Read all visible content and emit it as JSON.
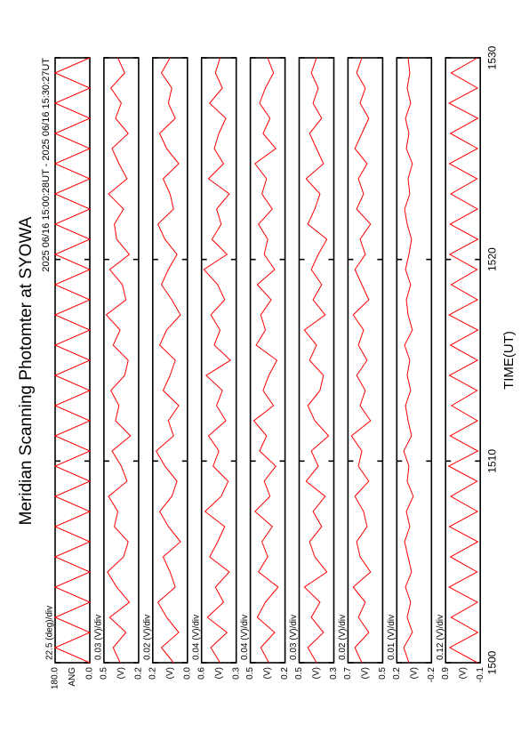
{
  "title": "Meridian Scanning Photomter at SYOWA",
  "subtitle": "2025 06/16 15:00:28UT - 2025 06/16 15:30:27UT",
  "chart_data": {
    "type": "line",
    "xlabel": "TIME(UT)",
    "color": "#ff0000",
    "xlim": [
      1500,
      1530
    ],
    "xticks": [
      1500,
      1510,
      1520,
      1530
    ],
    "x": [
      1500,
      1500.75,
      1501.5,
      1502.25,
      1503,
      1503.75,
      1504.5,
      1505.25,
      1506,
      1506.75,
      1507.5,
      1508.25,
      1509,
      1509.75,
      1510.5,
      1511.25,
      1512,
      1512.75,
      1513.5,
      1514.25,
      1515,
      1515.75,
      1516.5,
      1517.25,
      1518,
      1518.75,
      1519.5,
      1520.25,
      1521,
      1521.75,
      1522.5,
      1523.25,
      1524,
      1524.75,
      1525.5,
      1526.25,
      1527,
      1527.75,
      1528.5,
      1529.25,
      1530
    ],
    "panels": [
      {
        "scale": "22.5 (deg)/div",
        "ylabel": "ANG",
        "ylim": [
          0,
          180
        ],
        "yticks": [
          {
            "value": 0,
            "label": "0.0"
          },
          {
            "value": 180,
            "label": "180.0"
          }
        ],
        "values": [
          0,
          180,
          0,
          180,
          0,
          180,
          0,
          180,
          0,
          180,
          0,
          180,
          0,
          180,
          0,
          180,
          0,
          180,
          0,
          180,
          0,
          180,
          0,
          180,
          0,
          180,
          0,
          180,
          0,
          180,
          0,
          180,
          0,
          180,
          0,
          180,
          0,
          180,
          0,
          180,
          0
        ]
      },
      {
        "scale": "0.03 (V)/div",
        "ylabel": "(V)",
        "ylim": [
          0.2,
          0.5
        ],
        "yticks": [
          0.2,
          0.5
        ],
        "values": [
          0.36,
          0.42,
          0.31,
          0.45,
          0.28,
          0.39,
          0.47,
          0.33,
          0.29,
          0.41,
          0.38,
          0.46,
          0.3,
          0.35,
          0.43,
          0.27,
          0.4,
          0.37,
          0.44,
          0.32,
          0.29,
          0.42,
          0.36,
          0.48,
          0.31,
          0.34,
          0.45,
          0.28,
          0.39,
          0.41,
          0.33,
          0.46,
          0.3,
          0.37,
          0.43,
          0.29,
          0.4,
          0.35,
          0.44,
          0.32,
          0.38
        ]
      },
      {
        "scale": "0.02 (V)/div",
        "ylabel": "(V)",
        "ylim": [
          0,
          0.2
        ],
        "yticks": [
          {
            "value": 0,
            "label": "0.0"
          },
          0.2
        ],
        "values": [
          0.08,
          0.15,
          0.05,
          0.12,
          0.17,
          0.07,
          0.1,
          0.14,
          0.04,
          0.11,
          0.16,
          0.09,
          0.06,
          0.13,
          0.18,
          0.08,
          0.11,
          0.05,
          0.14,
          0.1,
          0.07,
          0.16,
          0.12,
          0.04,
          0.09,
          0.15,
          0.11,
          0.06,
          0.13,
          0.17,
          0.08,
          0.1,
          0.14,
          0.05,
          0.12,
          0.16,
          0.07,
          0.11,
          0.09,
          0.15,
          0.1
        ]
      },
      {
        "scale": "0.04 (V)/div",
        "ylabel": "(V)",
        "ylim": [
          0.3,
          0.6
        ],
        "yticks": [
          0.3,
          0.6
        ],
        "values": [
          0.44,
          0.52,
          0.38,
          0.55,
          0.41,
          0.48,
          0.36,
          0.53,
          0.46,
          0.4,
          0.57,
          0.43,
          0.37,
          0.5,
          0.45,
          0.54,
          0.39,
          0.47,
          0.42,
          0.56,
          0.35,
          0.49,
          0.44,
          0.52,
          0.4,
          0.46,
          0.58,
          0.38,
          0.51,
          0.43,
          0.47,
          0.36,
          0.54,
          0.41,
          0.49,
          0.45,
          0.39,
          0.53,
          0.42,
          0.48,
          0.44
        ]
      },
      {
        "scale": "0.04 (V)/div",
        "ylabel": "(V)",
        "ylim": [
          0.2,
          0.5
        ],
        "yticks": [
          0.2,
          0.5
        ],
        "values": [
          0.34,
          0.41,
          0.29,
          0.44,
          0.37,
          0.26,
          0.43,
          0.35,
          0.4,
          0.31,
          0.46,
          0.33,
          0.38,
          0.28,
          0.42,
          0.36,
          0.47,
          0.3,
          0.39,
          0.34,
          0.27,
          0.45,
          0.37,
          0.41,
          0.32,
          0.44,
          0.29,
          0.38,
          0.35,
          0.43,
          0.31,
          0.4,
          0.36,
          0.46,
          0.28,
          0.39,
          0.33,
          0.42,
          0.37,
          0.3,
          0.35
        ]
      },
      {
        "scale": "0.03 (V)/div",
        "ylabel": "(V)",
        "ylim": [
          0.3,
          0.5
        ],
        "yticks": [
          0.3,
          0.5
        ],
        "values": [
          0.4,
          0.45,
          0.36,
          0.43,
          0.38,
          0.47,
          0.34,
          0.41,
          0.44,
          0.37,
          0.42,
          0.35,
          0.46,
          0.39,
          0.43,
          0.33,
          0.41,
          0.45,
          0.38,
          0.36,
          0.44,
          0.4,
          0.47,
          0.35,
          0.42,
          0.37,
          0.43,
          0.39,
          0.34,
          0.45,
          0.41,
          0.38,
          0.46,
          0.36,
          0.4,
          0.44,
          0.37,
          0.42,
          0.39,
          0.43,
          0.4
        ]
      },
      {
        "scale": "0.02 (V)/div",
        "ylabel": "(V)",
        "ylim": [
          0.5,
          0.7
        ],
        "yticks": [
          0.5,
          0.7
        ],
        "values": [
          0.62,
          0.66,
          0.58,
          0.64,
          0.6,
          0.67,
          0.57,
          0.63,
          0.65,
          0.59,
          0.61,
          0.66,
          0.58,
          0.64,
          0.62,
          0.68,
          0.57,
          0.63,
          0.6,
          0.65,
          0.59,
          0.64,
          0.61,
          0.67,
          0.58,
          0.62,
          0.66,
          0.6,
          0.63,
          0.57,
          0.65,
          0.61,
          0.64,
          0.59,
          0.66,
          0.62,
          0.58,
          0.63,
          0.6,
          0.65,
          0.62
        ]
      },
      {
        "scale": "0.01 (V)/div",
        "ylabel": "(V)",
        "ylim": [
          -0.2,
          0.2
        ],
        "yticks": [
          -0.2,
          0.2
        ],
        "values": [
          0.06,
          0.12,
          0.02,
          0.08,
          0.04,
          0.1,
          0.03,
          0.07,
          0.11,
          0.05,
          0.09,
          0.01,
          0.08,
          0.06,
          0.12,
          0.03,
          0.07,
          0.1,
          0.04,
          0.08,
          0.05,
          0.11,
          0.02,
          0.07,
          0.09,
          0.04,
          0.1,
          0.06,
          0.03,
          0.08,
          0.11,
          0.05,
          0.07,
          0.02,
          0.09,
          0.06,
          0.1,
          0.04,
          0.08,
          0.05,
          0.07
        ]
      },
      {
        "scale": "0.12 (V)/div",
        "ylabel": "(V)",
        "ylim": [
          -0.1,
          0.9
        ],
        "yticks": [
          -0.1,
          0.9
        ],
        "values": [
          -0.02,
          0.78,
          -0.03,
          0.74,
          -0.02,
          0.8,
          -0.01,
          0.76,
          -0.03,
          0.79,
          -0.02,
          0.75,
          -0.01,
          0.81,
          -0.03,
          0.77,
          -0.02,
          0.73,
          -0.01,
          0.79,
          -0.02,
          0.76,
          -0.03,
          0.8,
          -0.02,
          0.74,
          -0.01,
          0.78,
          -0.03,
          0.77,
          -0.02,
          0.75,
          -0.01,
          0.79,
          -0.02,
          0.76,
          -0.03,
          0.8,
          -0.02,
          0.74,
          -0.02
        ]
      }
    ]
  }
}
